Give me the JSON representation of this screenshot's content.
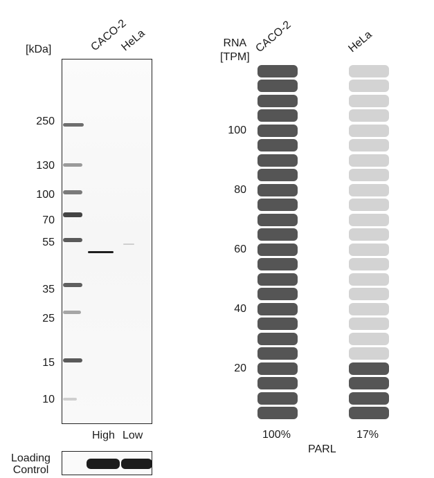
{
  "western_blot": {
    "unit_label": "[kDa]",
    "lanes": [
      "CACO-2",
      "HeLa"
    ],
    "markers": [
      "250",
      "130",
      "100",
      "70",
      "55",
      "35",
      "25",
      "15",
      "10"
    ],
    "load_labels": [
      "High",
      "Low"
    ],
    "loading_control_label_line1": "Loading",
    "loading_control_label_line2": "Control"
  },
  "rna": {
    "axis_label_line1": "RNA",
    "axis_label_line2": "[TPM]",
    "gene": "PARL",
    "colors": {
      "filled": "#555555",
      "empty": "#d3d3d3"
    },
    "chart_data": {
      "type": "bar",
      "title": "",
      "xlabel": "PARL",
      "ylabel": "RNA [TPM]",
      "categories": [
        "CACO-2",
        "HeLa"
      ],
      "values": [
        100,
        17
      ],
      "value_labels": [
        "100%",
        "17%"
      ],
      "y_tick_labels": [
        "20",
        "40",
        "60",
        "80",
        "100"
      ],
      "grid": false
    }
  }
}
